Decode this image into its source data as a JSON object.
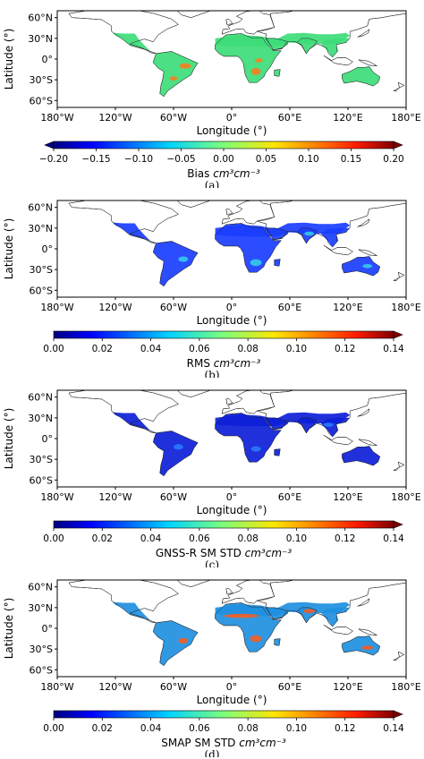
{
  "panels": [
    {
      "caption": "(a)",
      "colorbar": {
        "label_text": "Bias ",
        "units": "cm³cm⁻³",
        "ticks": [
          "−0.20",
          "−0.15",
          "−0.10",
          "−0.05",
          "0.00",
          "0.05",
          "0.10",
          "0.15",
          "0.20"
        ],
        "range": [
          -0.2,
          0.2
        ],
        "extend": "both",
        "colormap": "jet"
      },
      "map_fill_color": "#3ddc7a",
      "hotspot_color": "#ff7a1a"
    },
    {
      "caption": "(b)",
      "colorbar": {
        "label_text": "RMS ",
        "units": "cm³cm⁻³",
        "ticks": [
          "0.00",
          "0.02",
          "0.04",
          "0.06",
          "0.08",
          "0.10",
          "0.12",
          "0.14"
        ],
        "range": [
          0,
          0.14
        ],
        "extend": "max",
        "colormap": "jet"
      },
      "map_fill_color": "#1a3dff",
      "hotspot_color": "#34d2e8"
    },
    {
      "caption": "(c)",
      "colorbar": {
        "label_text": "GNSS-R SM STD ",
        "units": "cm³cm⁻³",
        "ticks": [
          "0.00",
          "0.02",
          "0.04",
          "0.06",
          "0.08",
          "0.10",
          "0.12",
          "0.14"
        ],
        "range": [
          0,
          0.14
        ],
        "extend": "max",
        "colormap": "jet"
      },
      "map_fill_color": "#0d20d8",
      "hotspot_color": "#2a7dff"
    },
    {
      "caption": "(d)",
      "colorbar": {
        "label_text": "SMAP SM STD ",
        "units": "cm³cm⁻³",
        "ticks": [
          "0.00",
          "0.02",
          "0.04",
          "0.06",
          "0.08",
          "0.10",
          "0.12",
          "0.14"
        ],
        "range": [
          0,
          0.14
        ],
        "extend": "max",
        "colormap": "jet"
      },
      "map_fill_color": "#1f8fe0",
      "hotspot_color": "#ff5a1a"
    }
  ],
  "map_axes": {
    "xlabel": "Longitude (°)",
    "ylabel": "Latitude (°)",
    "lon_ticks": [
      "180°W",
      "120°W",
      "60°W",
      "0°",
      "60°E",
      "120°E",
      "180°E"
    ],
    "lat_ticks": [
      "60°N",
      "30°N",
      "0°",
      "30°S",
      "60°S"
    ],
    "lon_range": [
      -180,
      180
    ],
    "lat_range": [
      -70,
      70
    ],
    "projection": "plate carree"
  }
}
